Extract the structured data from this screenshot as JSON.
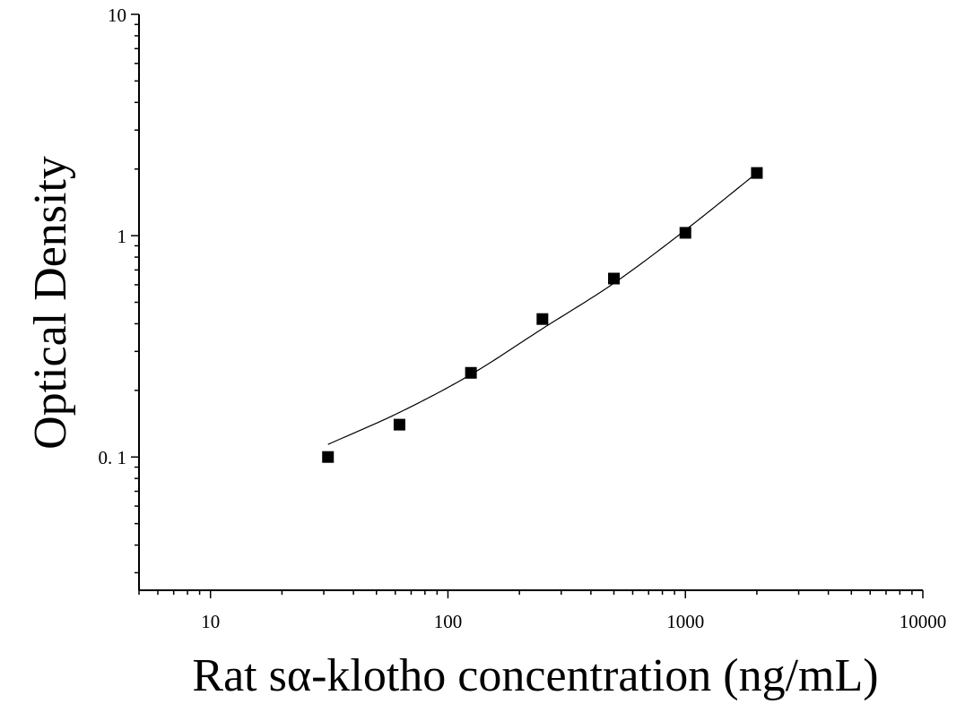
{
  "chart_data": {
    "type": "scatter",
    "xlabel": "Rat sα-klotho concentration (ng/mL)",
    "ylabel": "Optical Density",
    "xscale": "log",
    "yscale": "log",
    "xlim": [
      5,
      10000
    ],
    "ylim": [
      0.025,
      10
    ],
    "x_tick_labels": [
      {
        "value": 10,
        "label": "10"
      },
      {
        "value": 100,
        "label": "100"
      },
      {
        "value": 1000,
        "label": "1000"
      },
      {
        "value": 10000,
        "label": "10000"
      }
    ],
    "y_tick_labels": [
      {
        "value": 0.1,
        "label": "0. 1"
      },
      {
        "value": 1,
        "label": "1"
      },
      {
        "value": 10,
        "label": "10"
      }
    ],
    "grid": false,
    "legend": "none",
    "series": [
      {
        "marker": "square",
        "color": "#000000",
        "points": [
          {
            "x": 31.25,
            "y": 0.1
          },
          {
            "x": 62.5,
            "y": 0.14
          },
          {
            "x": 125,
            "y": 0.24
          },
          {
            "x": 250,
            "y": 0.42
          },
          {
            "x": 500,
            "y": 0.64
          },
          {
            "x": 1000,
            "y": 1.03
          },
          {
            "x": 2000,
            "y": 1.92
          }
        ]
      }
    ],
    "fit_curve": {
      "color": "#000000",
      "points": [
        {
          "x": 31.25,
          "y": 0.114
        },
        {
          "x": 62.5,
          "y": 0.159
        },
        {
          "x": 125,
          "y": 0.236
        },
        {
          "x": 250,
          "y": 0.38
        },
        {
          "x": 500,
          "y": 0.61
        },
        {
          "x": 1000,
          "y": 1.06
        },
        {
          "x": 2000,
          "y": 1.92
        }
      ]
    }
  }
}
